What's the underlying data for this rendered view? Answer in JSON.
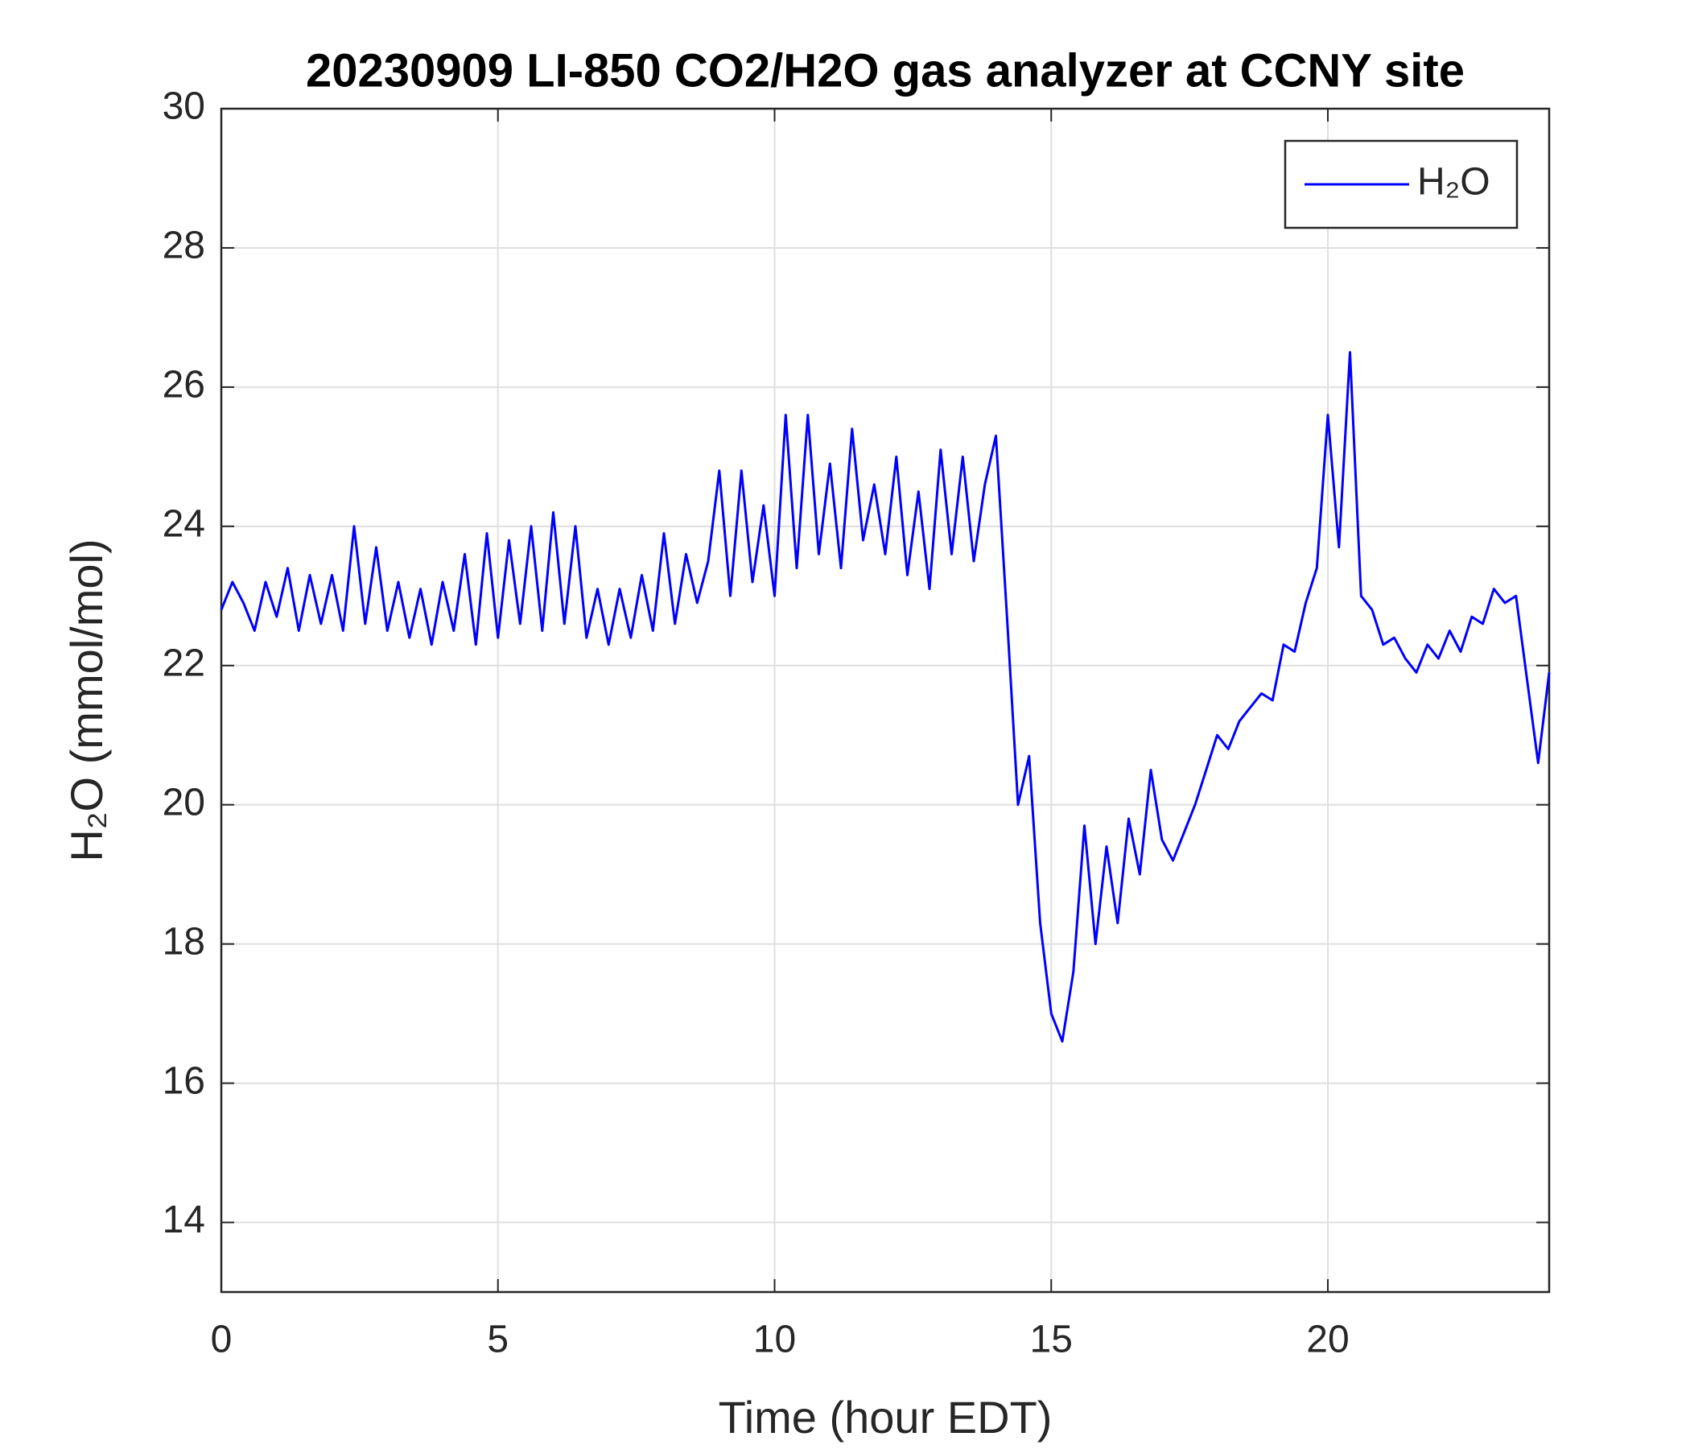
{
  "chart_data": {
    "type": "line",
    "title": "20230909 LI-850 CO2/H2O gas analyzer at CCNY site",
    "xlabel": "Time (hour EDT)",
    "ylabel": "H₂O (mmol/mol)",
    "x": [
      0,
      0.2,
      0.4,
      0.6,
      0.8,
      1,
      1.2,
      1.4,
      1.6,
      1.8,
      2,
      2.2,
      2.4,
      2.6,
      2.8,
      3,
      3.2,
      3.4,
      3.6,
      3.8,
      4,
      4.2,
      4.4,
      4.6,
      4.8,
      5,
      5.2,
      5.4,
      5.6,
      5.8,
      6,
      6.2,
      6.4,
      6.6,
      6.8,
      7,
      7.2,
      7.4,
      7.6,
      7.8,
      8,
      8.2,
      8.4,
      8.6,
      8.8,
      9,
      9.2,
      9.4,
      9.6,
      9.8,
      10,
      10.2,
      10.4,
      10.6,
      10.8,
      11,
      11.2,
      11.4,
      11.6,
      11.8,
      12,
      12.2,
      12.4,
      12.6,
      12.8,
      13,
      13.2,
      13.4,
      13.6,
      13.8,
      14,
      14.2,
      14.4,
      14.6,
      14.8,
      15,
      15.2,
      15.4,
      15.6,
      15.8,
      16,
      16.2,
      16.4,
      16.6,
      16.8,
      17,
      17.2,
      17.4,
      17.6,
      17.8,
      18,
      18.2,
      18.4,
      18.6,
      18.8,
      19,
      19.2,
      19.4,
      19.6,
      19.8,
      20,
      20.2,
      20.4,
      20.6,
      20.8,
      21,
      21.2,
      21.4,
      21.6,
      21.8,
      22,
      22.2,
      22.4,
      22.6,
      22.8,
      23,
      23.2,
      23.4,
      23.6,
      23.8,
      24
    ],
    "series": [
      {
        "name": "H₂O",
        "color": "#0000ff",
        "values": [
          22.8,
          23.2,
          22.9,
          22.5,
          23.2,
          22.7,
          23.4,
          22.5,
          23.3,
          22.6,
          23.3,
          22.5,
          24.0,
          22.6,
          23.7,
          22.5,
          23.2,
          22.4,
          23.1,
          22.3,
          23.2,
          22.5,
          23.6,
          22.3,
          23.9,
          22.4,
          23.8,
          22.6,
          24.0,
          22.5,
          24.2,
          22.6,
          24.0,
          22.4,
          23.1,
          22.3,
          23.1,
          22.4,
          23.3,
          22.5,
          23.9,
          22.6,
          23.6,
          22.9,
          23.5,
          24.8,
          23.0,
          24.8,
          23.2,
          24.3,
          23.0,
          25.6,
          23.4,
          25.6,
          23.6,
          24.9,
          23.4,
          25.4,
          23.8,
          24.6,
          23.6,
          25.0,
          23.3,
          24.5,
          23.1,
          25.1,
          23.6,
          25.0,
          23.5,
          24.6,
          25.3,
          22.7,
          20.0,
          20.7,
          18.3,
          17.0,
          16.6,
          17.6,
          19.7,
          18.0,
          19.4,
          18.3,
          19.8,
          19.0,
          20.5,
          19.5,
          19.2,
          19.6,
          20.0,
          20.5,
          21.0,
          20.8,
          21.2,
          21.4,
          21.6,
          21.5,
          22.3,
          22.2,
          22.9,
          23.4,
          25.6,
          23.7,
          26.5,
          23.0,
          22.8,
          22.3,
          22.4,
          22.1,
          21.9,
          22.3,
          22.1,
          22.5,
          22.2,
          22.7,
          22.6,
          23.1,
          22.9,
          23.0,
          21.8,
          20.6,
          21.9
        ]
      }
    ],
    "xlim": [
      0,
      24
    ],
    "xticks": [
      0,
      5,
      10,
      15,
      20
    ],
    "ylim": [
      13,
      30
    ],
    "yticks": [
      14,
      16,
      18,
      20,
      22,
      24,
      26,
      28,
      30
    ],
    "grid": true,
    "legend": "upper right"
  }
}
